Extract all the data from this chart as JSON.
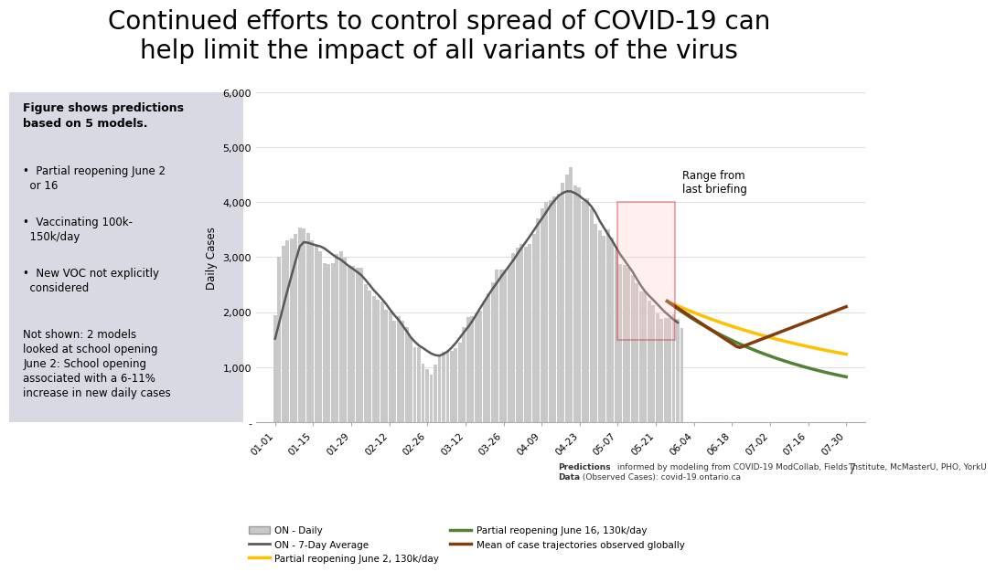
{
  "title": "Continued efforts to control spread of COVID-19 can\nhelp limit the impact of all variants of the virus",
  "title_fontsize": 20,
  "background_color": "#ffffff",
  "left_panel_bg": "#d9d9e3",
  "left_panel_bold": "Figure shows predictions\nbased on 5 models.",
  "left_panel_bullets": [
    "Partial reopening June 2\n  or 16",
    "Vaccinating 100k-\n  150k/day",
    "New VOC not explicitly\n  considered"
  ],
  "left_panel_note": "Not shown: 2 models\nlooked at school opening\nJune 2: School opening\nassociated with a 6-11%\nincrease in new daily cases",
  "ylabel": "Daily Cases",
  "ylim": [
    0,
    6000
  ],
  "yticks": [
    0,
    1000,
    2000,
    3000,
    4000,
    5000,
    6000
  ],
  "ytick_labels": [
    "-",
    "1,000",
    "2,000",
    "3,000",
    "4,000",
    "5,000",
    "6,000"
  ],
  "x_labels": [
    "01-01",
    "01-15",
    "01-29",
    "02-12",
    "02-26",
    "03-12",
    "03-26",
    "04-09",
    "04-23",
    "05-07",
    "05-21",
    "06-04",
    "06-18",
    "07-02",
    "07-16",
    "07-30"
  ],
  "bar_color": "#c8c8c8",
  "avg_line_color": "#595959",
  "june2_color": "#ffc000",
  "june16_color": "#538135",
  "global_color": "#843c0c",
  "red_rect_color": "#c00000",
  "red_rect_fill": "#ffcccc",
  "annotation_text": "Range from\nlast briefing",
  "footer_bold": "Predictions",
  "footer_rest": " informed by modeling from COVID-19 ModCollab, Fields Institute, McMasterU, PHO, YorkU",
  "footer_line2_bold": "Data",
  "footer_line2_rest": " (Observed Cases): covid-19.ontario.ca",
  "page_num": "7"
}
